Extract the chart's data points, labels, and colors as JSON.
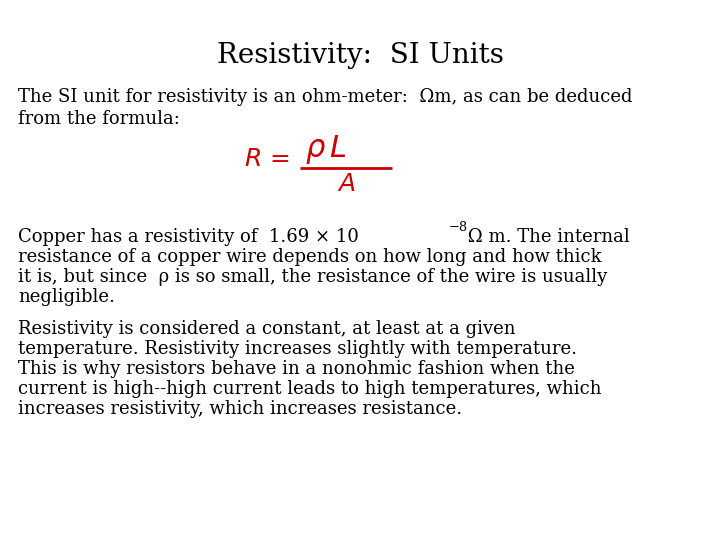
{
  "title": "Resistivity:  SI Units",
  "title_fontsize": 20,
  "title_font": "serif",
  "background_color": "#ffffff",
  "text_color": "#000000",
  "formula_color": "#cc0000",
  "body_fontsize": 13.0,
  "body_font": "serif",
  "para1_line1": "The SI unit for resistivity is an ohm-meter:  Ωm, as can be deduced",
  "para1_line2": "from the formula:",
  "para2_line1a": "Copper has a resistivity of  1.69 × 10",
  "para2_exp": "−8",
  "para2_line1b": " Ω m. The internal",
  "para2_line2": "resistance of a copper wire depends on how long and how thick",
  "para2_line3": "it is, but since  ρ is so small, the resistance of the wire is usually",
  "para2_line4": "negligible.",
  "para3_line1": "Resistivity is considered a constant, at least at a given",
  "para3_line2": "temperature. Resistivity increases slightly with temperature.",
  "para3_line3": "This is why resistors behave in a nonohmic fashion when the",
  "para3_line4": "current is high--high current leads to high temperatures, which",
  "para3_line5": "increases resistivity, which increases resistance."
}
